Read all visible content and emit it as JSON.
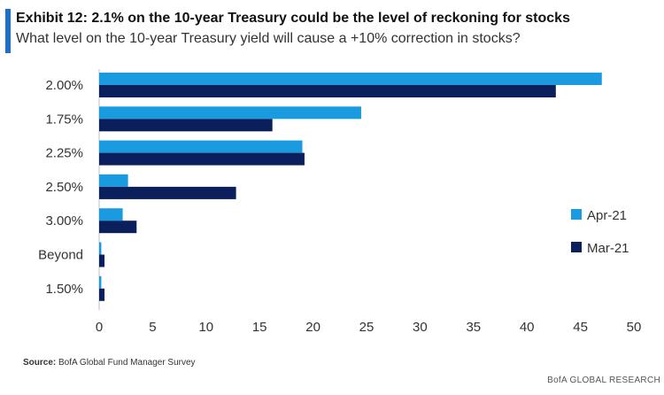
{
  "header": {
    "title": "Exhibit 12: 2.1% on the 10-year Treasury could be the level of reckoning for stocks",
    "subtitle": "What level on the 10-year Treasury yield will cause a +10% correction in stocks?"
  },
  "footer": {
    "source_label": "Source:",
    "source_text": "BofA Global Fund Manager Survey",
    "brand": "BofA GLOBAL RESEARCH"
  },
  "chart_data": {
    "type": "bar",
    "orientation": "horizontal",
    "categories": [
      "2.00%",
      "1.75%",
      "2.25%",
      "2.50%",
      "3.00%",
      "Beyond",
      "1.50%"
    ],
    "series": [
      {
        "name": "Apr-21",
        "color": "#1a9be0",
        "values": [
          47,
          24.5,
          19,
          2.7,
          2.2,
          0.2,
          0.2
        ]
      },
      {
        "name": "Mar-21",
        "color": "#0b1f5c",
        "values": [
          42.7,
          16.2,
          19.2,
          12.8,
          3.5,
          0.5,
          0.5
        ]
      }
    ],
    "xlim": [
      0,
      50
    ],
    "xticks": [
      "0",
      "5",
      "10",
      "15",
      "20",
      "25",
      "30",
      "35",
      "40",
      "45",
      "50"
    ],
    "legend_position": "right",
    "grid": false
  }
}
